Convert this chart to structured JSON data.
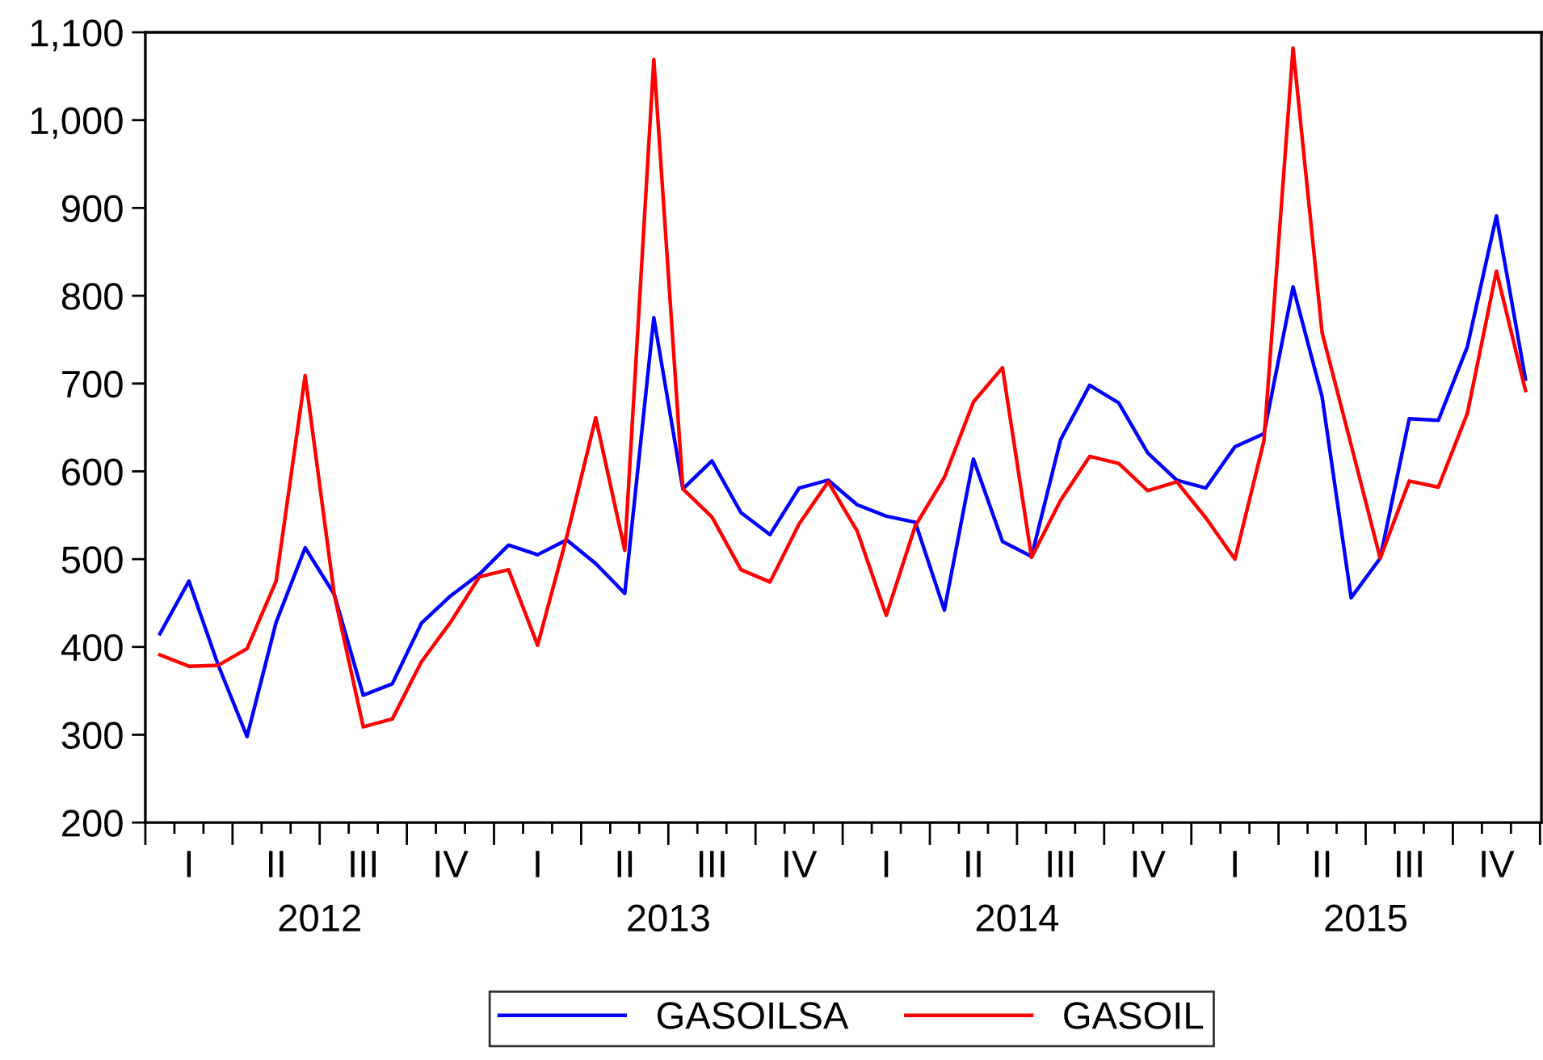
{
  "chart_data": {
    "type": "line",
    "categories": [
      null,
      "I",
      null,
      null,
      "II",
      null,
      null,
      "III",
      null,
      null,
      "IV",
      null,
      null,
      "I",
      null,
      null,
      "II",
      null,
      null,
      "III",
      null,
      null,
      "IV",
      null,
      null,
      "I",
      null,
      null,
      "II",
      null,
      null,
      "III",
      null,
      null,
      "IV",
      null,
      null,
      "I",
      null,
      null,
      "II",
      null,
      null,
      "III",
      null,
      null,
      "IV",
      null
    ],
    "series": [
      {
        "name": "GASOILSA",
        "color": "#0000ff",
        "values": [
          415,
          475,
          380,
          298,
          428,
          513,
          460,
          345,
          358,
          427,
          458,
          483,
          516,
          505,
          522,
          495,
          461,
          775,
          580,
          612,
          553,
          528,
          581,
          590,
          562,
          549,
          542,
          442,
          614,
          520,
          503,
          636,
          698,
          678,
          621,
          590,
          581,
          628,
          643,
          810,
          685,
          456,
          501,
          660,
          658,
          742,
          891,
          705
        ]
      },
      {
        "name": "GASOIL",
        "color": "#ff0000",
        "values": [
          391,
          378,
          379,
          398,
          475,
          709,
          460,
          309,
          318,
          383,
          428,
          480,
          488,
          402,
          525,
          661,
          510,
          1069,
          580,
          548,
          488,
          474,
          540,
          588,
          532,
          436,
          538,
          593,
          679,
          718,
          502,
          567,
          617,
          609,
          578,
          588,
          547,
          500,
          635,
          1082,
          758,
          630,
          501,
          589,
          582,
          666,
          828,
          692
        ]
      }
    ],
    "annotations": [
      "2012",
      "2013",
      "2014",
      "2015"
    ],
    "ylim": [
      200,
      1100
    ],
    "yticks": [
      200,
      300,
      400,
      500,
      600,
      700,
      800,
      900,
      {
        "value": 1000,
        "label": "1,000"
      },
      {
        "value": 1100,
        "label": "1,100"
      }
    ],
    "legend": "bottom",
    "line_style": "solid"
  }
}
